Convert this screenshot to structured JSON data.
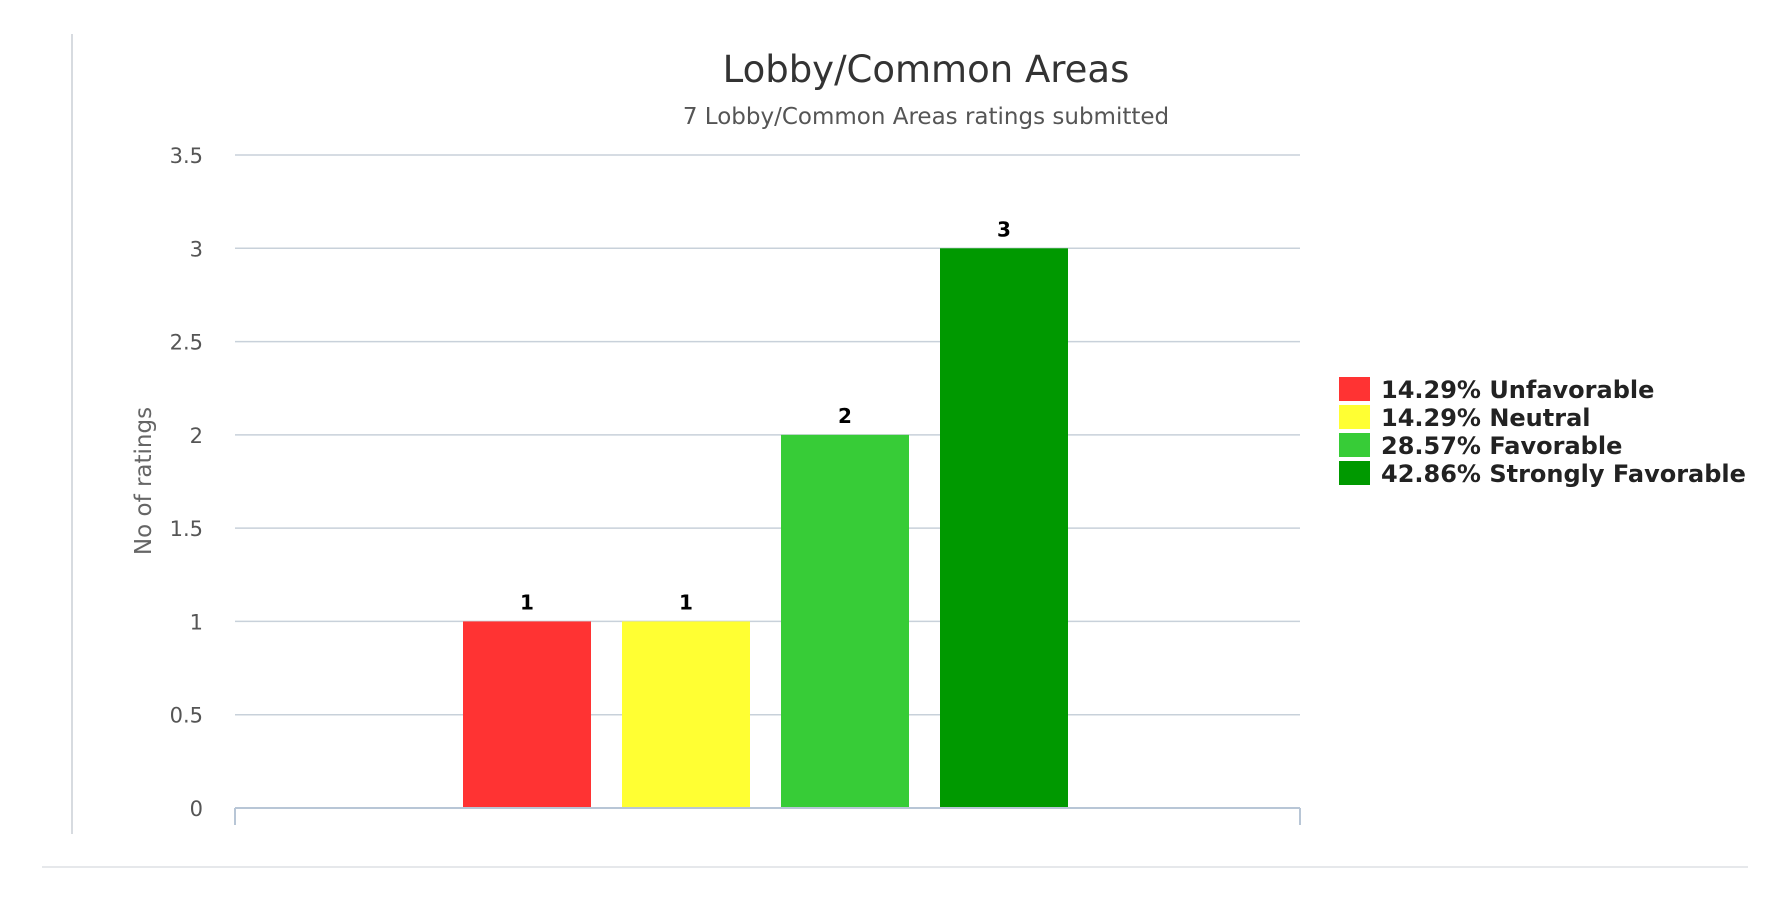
{
  "chart_data": {
    "type": "bar",
    "title": "Lobby/Common Areas",
    "subtitle": "7 Lobby/Common Areas ratings submitted",
    "ylabel": "No of ratings",
    "xlabel": "",
    "ylim": [
      0,
      3.5
    ],
    "yticks": [
      "0",
      "0.5",
      "1",
      "1.5",
      "2",
      "2.5",
      "3",
      "3.5"
    ],
    "grid": true,
    "legend_position": "right",
    "series": [
      {
        "name": "14.29% Unfavorable",
        "value": 1,
        "label": "1",
        "color": "#ff3333"
      },
      {
        "name": "14.29% Neutral",
        "value": 1,
        "label": "1",
        "color": "#ffff33"
      },
      {
        "name": "28.57% Favorable",
        "value": 2,
        "label": "2",
        "color": "#37cc37"
      },
      {
        "name": "42.86% Strongly Favorable",
        "value": 3,
        "label": "3",
        "color": "#009900"
      }
    ]
  }
}
